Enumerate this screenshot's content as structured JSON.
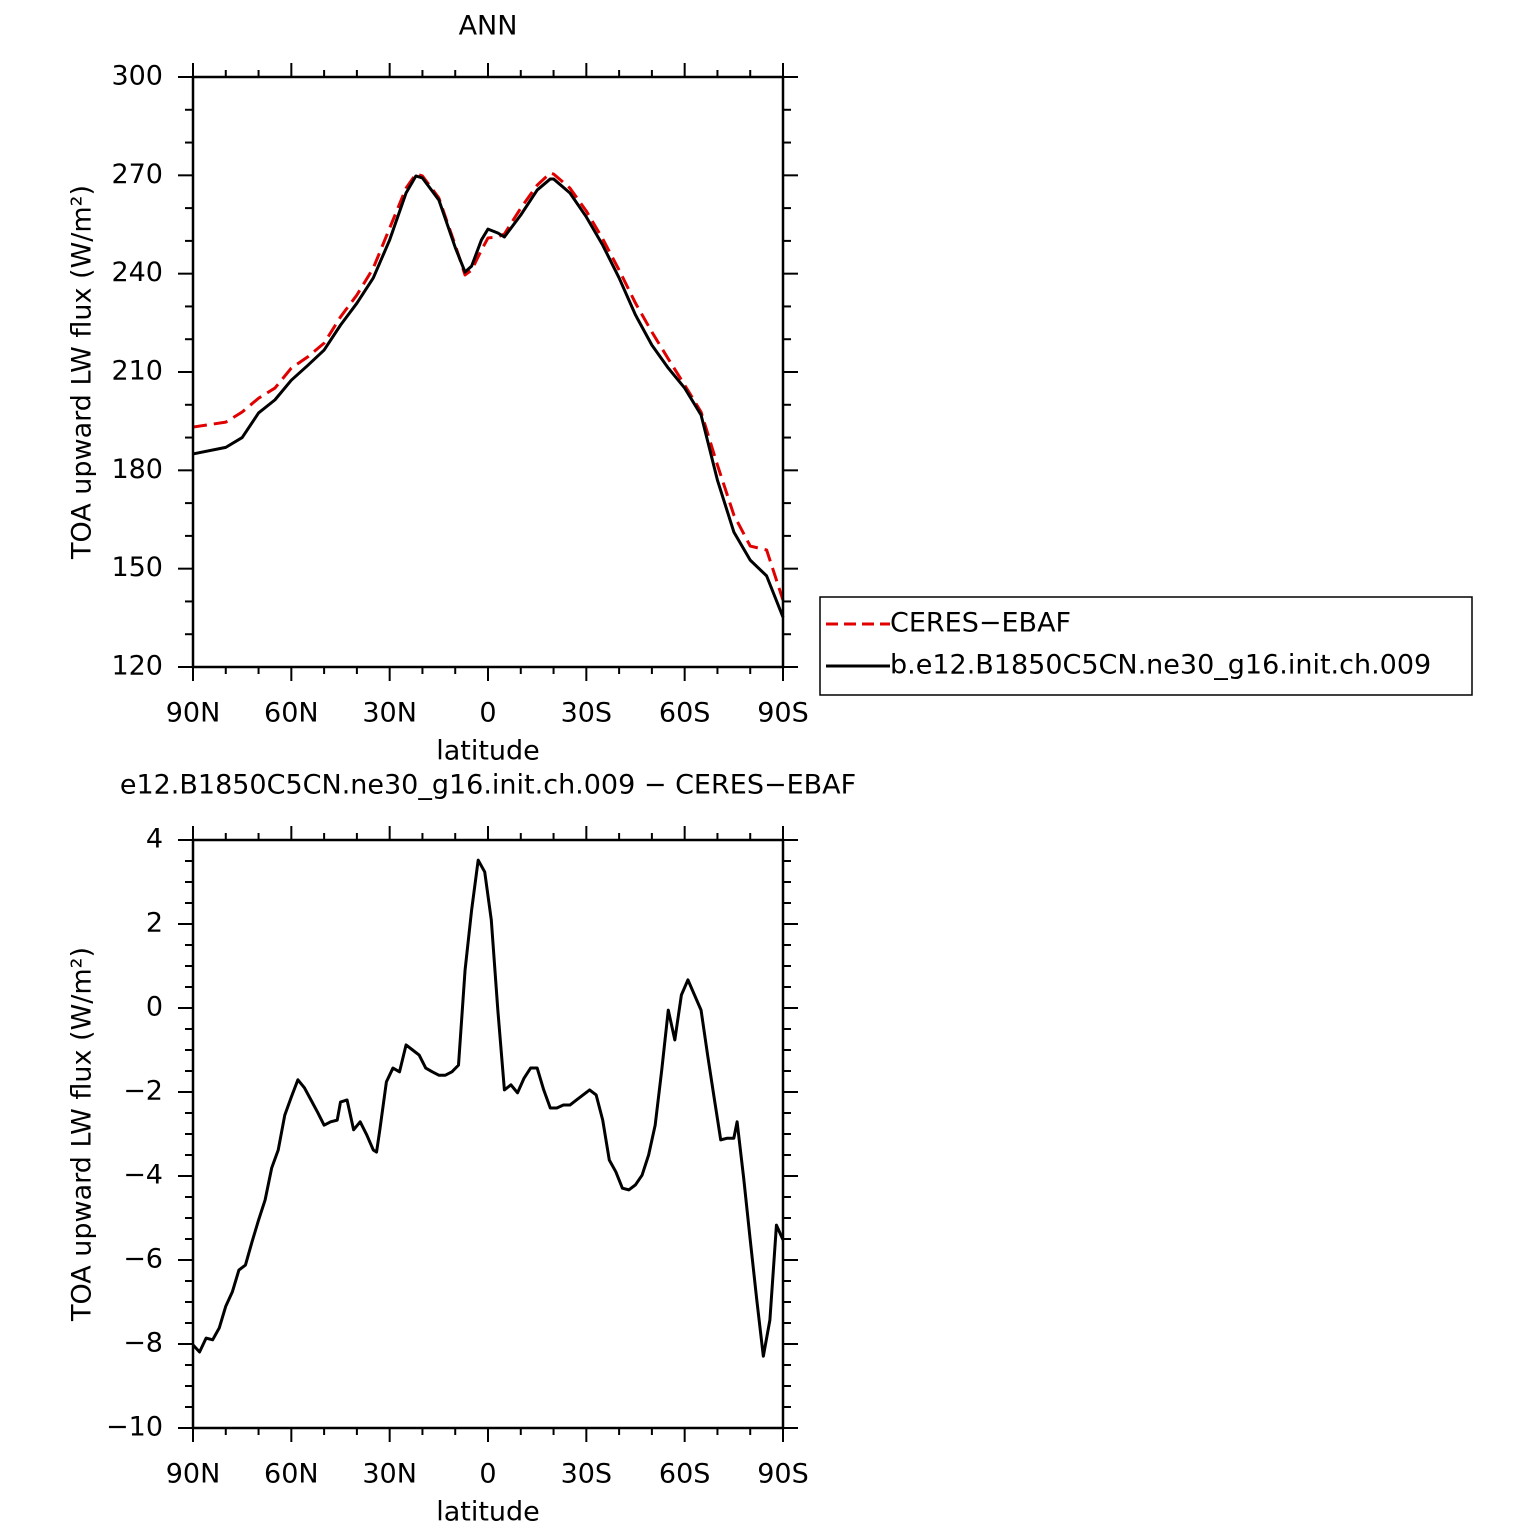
{
  "chart_data": [
    {
      "type": "line",
      "title": "ANN",
      "x_label": "latitude",
      "y_label": "TOA upward LW flux (W/m²)",
      "x": [
        90,
        80,
        75,
        70,
        65,
        60,
        55,
        50,
        45,
        40,
        35,
        30,
        25,
        22,
        20,
        15,
        10,
        7,
        5,
        2,
        0,
        -3,
        -5,
        -10,
        -15,
        -19,
        -20,
        -25,
        -30,
        -35,
        -40,
        -45,
        -50,
        -55,
        -60,
        -65,
        -70,
        -75,
        -80,
        -85,
        -90
      ],
      "series": [
        {
          "name": "CERES−EBAF",
          "color": "#e00000",
          "dashed": true,
          "values": [
            193.2,
            194.7,
            197.8,
            202,
            205.1,
            211.2,
            214.6,
            218.8,
            226.8,
            233.5,
            241.7,
            253.9,
            266.1,
            270.4,
            269.8,
            263.1,
            248.7,
            239.6,
            241.1,
            247.2,
            250.9,
            251.2,
            252.1,
            260,
            267,
            270.7,
            270.4,
            266.1,
            259.1,
            250.6,
            241.1,
            231,
            222.2,
            214,
            206,
            197.8,
            181.6,
            166.4,
            156.9,
            155.7,
            140.4
          ]
        },
        {
          "name": "b.e12.B1850C5CN.ne30_g16.init.ch.009",
          "color": "#000000",
          "dashed": false,
          "values": [
            185,
            187,
            190,
            197.5,
            201.5,
            207.5,
            212,
            216.7,
            224.3,
            231,
            238.7,
            250.3,
            264.6,
            269.8,
            269.2,
            262.5,
            248,
            240.5,
            242.3,
            250.3,
            253.6,
            252.4,
            251.2,
            257.9,
            265.5,
            268.9,
            268.9,
            264.6,
            257.3,
            248.7,
            238.7,
            227.4,
            218.2,
            211.2,
            205.1,
            196.9,
            177,
            161.2,
            152.6,
            147.8,
            135.2
          ]
        }
      ],
      "xlim": [
        90,
        -90
      ],
      "xticks": [
        {
          "value": 90,
          "label": "90N"
        },
        {
          "value": 60,
          "label": "60N"
        },
        {
          "value": 30,
          "label": "30N"
        },
        0,
        {
          "value": -30,
          "label": "30S"
        },
        {
          "value": -60,
          "label": "60S"
        },
        {
          "value": -90,
          "label": "90S"
        }
      ],
      "xminorticks": [
        80,
        70,
        50,
        40,
        20,
        10,
        -10,
        -20,
        -40,
        -50,
        -70,
        -80
      ],
      "ylim": [
        120,
        300
      ],
      "yticks": [
        120,
        150,
        180,
        210,
        240,
        270,
        300
      ],
      "yminorticks": [
        130,
        140,
        160,
        170,
        190,
        200,
        220,
        230,
        250,
        260,
        280,
        290
      ],
      "legend": "right"
    },
    {
      "type": "line",
      "title": "e12.B1850C5CN.ne30_g16.init.ch.009 − CERES−EBAF",
      "x_label": "latitude",
      "y_label": "TOA upward LW flux (W/m²)",
      "x": [
        90,
        88,
        86,
        84,
        82,
        80,
        78,
        76,
        74,
        72,
        70,
        68,
        66,
        64,
        62,
        60,
        58,
        56,
        54,
        52,
        50,
        48,
        46,
        45,
        43,
        41,
        39,
        37,
        35,
        34,
        33,
        31,
        29,
        27,
        25,
        23,
        21,
        19,
        17,
        15,
        13,
        11,
        9,
        7,
        5,
        3,
        1,
        -1,
        -3,
        -5,
        -7,
        -9,
        -11,
        -13,
        -15,
        -17,
        -19,
        -21,
        -23,
        -25,
        -27,
        -29,
        -31,
        -33,
        -35,
        -37,
        -39,
        -41,
        -43,
        -45,
        -47,
        -49,
        -51,
        -53,
        -55,
        -57,
        -59,
        -61,
        -63,
        -65,
        -67,
        -69,
        -71,
        -73,
        -75,
        -76,
        -78,
        -80,
        -82,
        -84,
        -86,
        -88,
        -90
      ],
      "series": [
        {
          "name": "difference",
          "color": "#000000",
          "dashed": false,
          "values": [
            -8.02,
            -8.19,
            -7.86,
            -7.9,
            -7.62,
            -7.1,
            -6.76,
            -6.24,
            -6.12,
            -5.57,
            -5.05,
            -4.57,
            -3.81,
            -3.38,
            -2.55,
            -2.12,
            -1.71,
            -1.9,
            -2.19,
            -2.48,
            -2.79,
            -2.71,
            -2.67,
            -2.24,
            -2.19,
            -2.9,
            -2.71,
            -3.02,
            -3.38,
            -3.43,
            -2.9,
            -1.76,
            -1.43,
            -1.52,
            -0.88,
            -1,
            -1.12,
            -1.43,
            -1.52,
            -1.6,
            -1.6,
            -1.52,
            -1.36,
            0.9,
            2.33,
            3.52,
            3.24,
            2.1,
            -0.05,
            -1.95,
            -1.83,
            -2.02,
            -1.67,
            -1.43,
            -1.43,
            -1.95,
            -2.38,
            -2.38,
            -2.31,
            -2.31,
            -2.19,
            -2.07,
            -1.95,
            -2.07,
            -2.67,
            -3.62,
            -3.9,
            -4.29,
            -4.33,
            -4.21,
            -3.98,
            -3.5,
            -2.79,
            -1.48,
            -0.05,
            -0.76,
            0.31,
            0.67,
            0.31,
            -0.05,
            -1.12,
            -2.14,
            -3.14,
            -3.1,
            -3.1,
            -2.71,
            -4.05,
            -5.52,
            -6.95,
            -8.29,
            -7.43,
            -5.17,
            -5.52
          ]
        }
      ],
      "xlim": [
        90,
        -90
      ],
      "xticks": [
        {
          "value": 90,
          "label": "90N"
        },
        {
          "value": 60,
          "label": "60N"
        },
        {
          "value": 30,
          "label": "30N"
        },
        0,
        {
          "value": -30,
          "label": "30S"
        },
        {
          "value": -60,
          "label": "60S"
        },
        {
          "value": -90,
          "label": "90S"
        }
      ],
      "xminorticks": [
        80,
        70,
        50,
        40,
        20,
        10,
        -10,
        -20,
        -40,
        -50,
        -70,
        -80
      ],
      "ylim": [
        -10,
        4
      ],
      "yticks": [
        {
          "value": -10,
          "label": "−10"
        },
        {
          "value": -8,
          "label": "−8"
        },
        {
          "value": -6,
          "label": "−6"
        },
        {
          "value": -4,
          "label": "−4"
        },
        {
          "value": -2,
          "label": "−2"
        },
        0,
        2,
        4
      ],
      "yminorticks": [
        -9.5,
        -9,
        -8.5,
        -7.5,
        -7,
        -6.5,
        -5.5,
        -5,
        -4.5,
        -3.5,
        -3,
        -2.5,
        -1.5,
        -1,
        -0.5,
        0.5,
        1,
        1.5,
        2.5,
        3,
        3.5
      ]
    }
  ]
}
